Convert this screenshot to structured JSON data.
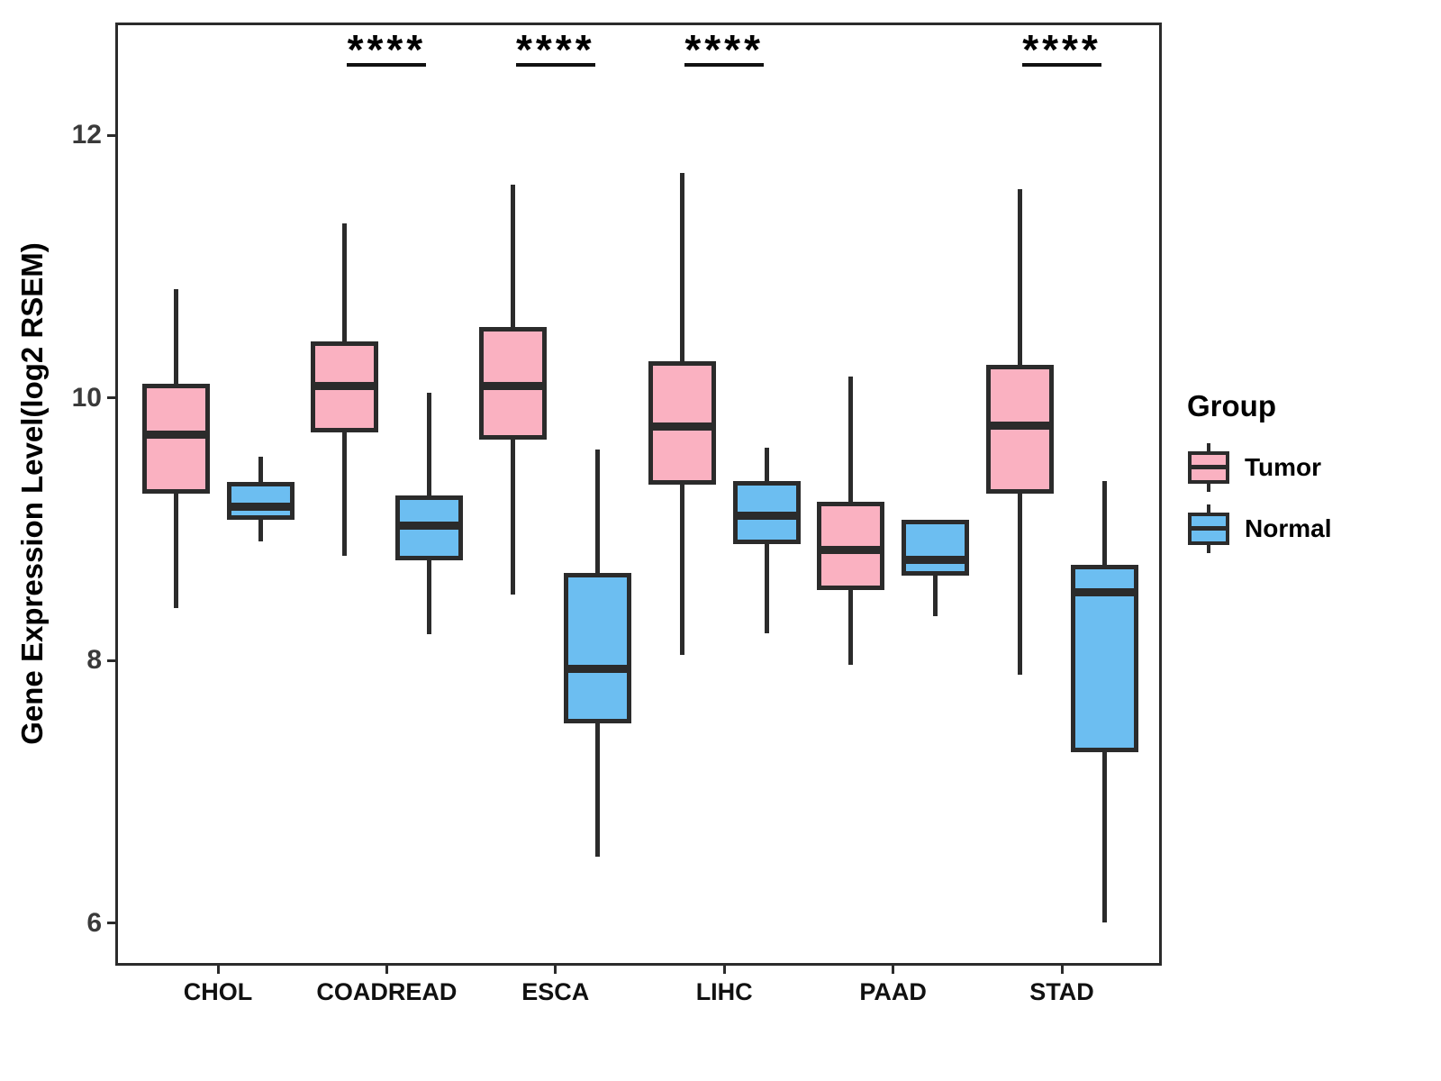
{
  "chart_data": {
    "type": "boxplot",
    "title": "",
    "xlabel": "",
    "ylabel": "Gene Expression Level(log2 RSEM)",
    "categories": [
      "CHOL",
      "COADREAD",
      "ESCA",
      "LIHC",
      "PAAD",
      "STAD"
    ],
    "yticks": [
      12,
      10,
      8,
      6
    ],
    "ylim": [
      5.7,
      12.9
    ],
    "grid": false,
    "legend": {
      "title": "Group",
      "position": "right"
    },
    "colors": {
      "stroke": "#2B2B2B",
      "background": "#FFFFFF"
    },
    "significance": [
      null,
      "****",
      "****",
      "****",
      null,
      "****"
    ],
    "series": [
      {
        "name": "Tumor",
        "color": "#FAB1C1",
        "boxes": [
          {
            "category": "CHOL",
            "low": 8.4,
            "q1": 9.27,
            "median": 9.72,
            "q3": 10.11,
            "high": 10.83
          },
          {
            "category": "COADREAD",
            "low": 8.8,
            "q1": 9.74,
            "median": 10.09,
            "q3": 10.43,
            "high": 11.33
          },
          {
            "category": "ESCA",
            "low": 8.5,
            "q1": 9.68,
            "median": 10.09,
            "q3": 10.54,
            "high": 11.62
          },
          {
            "category": "LIHC",
            "low": 8.04,
            "q1": 9.34,
            "median": 9.78,
            "q3": 10.28,
            "high": 11.71
          },
          {
            "category": "PAAD",
            "low": 7.97,
            "q1": 8.54,
            "median": 8.84,
            "q3": 9.21,
            "high": 10.16
          },
          {
            "category": "STAD",
            "low": 7.89,
            "q1": 9.27,
            "median": 9.79,
            "q3": 10.25,
            "high": 11.59
          }
        ]
      },
      {
        "name": "Normal",
        "color": "#6CBEF1",
        "boxes": [
          {
            "category": "CHOL",
            "low": 8.91,
            "q1": 9.07,
            "median": 9.17,
            "q3": 9.36,
            "high": 9.55
          },
          {
            "category": "COADREAD",
            "low": 8.2,
            "q1": 8.76,
            "median": 9.03,
            "q3": 9.26,
            "high": 10.04
          },
          {
            "category": "ESCA",
            "low": 6.51,
            "q1": 7.52,
            "median": 7.94,
            "q3": 8.67,
            "high": 9.61
          },
          {
            "category": "LIHC",
            "low": 8.21,
            "q1": 8.89,
            "median": 9.1,
            "q3": 9.37,
            "high": 9.62
          },
          {
            "category": "PAAD",
            "low": 8.34,
            "q1": 8.65,
            "median": 8.77,
            "q3": 9.07,
            "high": 9.07
          },
          {
            "category": "STAD",
            "low": 6.01,
            "q1": 7.3,
            "median": 8.52,
            "q3": 8.73,
            "high": 9.37
          }
        ]
      }
    ]
  }
}
